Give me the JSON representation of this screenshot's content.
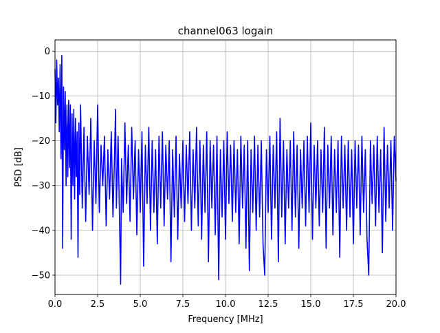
{
  "chart_data": {
    "type": "line",
    "title": "channel063 logain",
    "xlabel": "Frequency [MHz]",
    "ylabel": "PSD [dB]",
    "xlim": [
      0,
      20
    ],
    "ylim": [
      -54.3,
      2.5
    ],
    "grid": true,
    "line_color": "#0000ff",
    "x_ticks": [
      0.0,
      2.5,
      5.0,
      7.5,
      10.0,
      12.5,
      15.0,
      17.5,
      20.0
    ],
    "x_tick_labels": [
      "0.0",
      "2.5",
      "5.0",
      "7.5",
      "10.0",
      "12.5",
      "15.0",
      "17.5",
      "20.0"
    ],
    "y_ticks": [
      0,
      -10,
      -20,
      -30,
      -40,
      -50
    ],
    "y_tick_labels": [
      "0",
      "−10",
      "−20",
      "−30",
      "−40",
      "−50"
    ],
    "series": [
      {
        "points": [
          [
            0.0,
            -4
          ],
          [
            0.05,
            -16
          ],
          [
            0.1,
            -2
          ],
          [
            0.15,
            -12
          ],
          [
            0.2,
            -6
          ],
          [
            0.25,
            -18
          ],
          [
            0.3,
            -3
          ],
          [
            0.35,
            -24
          ],
          [
            0.4,
            -1
          ],
          [
            0.45,
            -44
          ],
          [
            0.5,
            -8
          ],
          [
            0.55,
            -22
          ],
          [
            0.6,
            -9
          ],
          [
            0.65,
            -30
          ],
          [
            0.7,
            -12
          ],
          [
            0.75,
            -28
          ],
          [
            0.8,
            -11
          ],
          [
            0.85,
            -26
          ],
          [
            0.9,
            -12
          ],
          [
            0.95,
            -42
          ],
          [
            1.0,
            -14
          ],
          [
            1.05,
            -30
          ],
          [
            1.1,
            -13
          ],
          [
            1.15,
            -33
          ],
          [
            1.2,
            -15
          ],
          [
            1.25,
            -28
          ],
          [
            1.3,
            -18
          ],
          [
            1.35,
            -46
          ],
          [
            1.4,
            -16
          ],
          [
            1.45,
            -32
          ],
          [
            1.5,
            -12
          ],
          [
            1.6,
            -35
          ],
          [
            1.7,
            -17
          ],
          [
            1.8,
            -38
          ],
          [
            1.9,
            -19
          ],
          [
            2.0,
            -32
          ],
          [
            2.1,
            -15
          ],
          [
            2.2,
            -40
          ],
          [
            2.3,
            -20
          ],
          [
            2.4,
            -34
          ],
          [
            2.5,
            -12
          ],
          [
            2.6,
            -36
          ],
          [
            2.7,
            -21
          ],
          [
            2.8,
            -30
          ],
          [
            2.9,
            -19
          ],
          [
            3.0,
            -39
          ],
          [
            3.1,
            -22
          ],
          [
            3.2,
            -33
          ],
          [
            3.3,
            -18
          ],
          [
            3.4,
            -37
          ],
          [
            3.5,
            -22
          ],
          [
            3.55,
            -13
          ],
          [
            3.6,
            -35
          ],
          [
            3.7,
            -19
          ],
          [
            3.8,
            -41
          ],
          [
            3.85,
            -52
          ],
          [
            3.9,
            -24
          ],
          [
            4.0,
            -36
          ],
          [
            4.1,
            -16
          ],
          [
            4.2,
            -34
          ],
          [
            4.3,
            -21
          ],
          [
            4.4,
            -38
          ],
          [
            4.5,
            -17
          ],
          [
            4.6,
            -33
          ],
          [
            4.7,
            -20
          ],
          [
            4.8,
            -41
          ],
          [
            4.9,
            -22
          ],
          [
            5.0,
            -36
          ],
          [
            5.1,
            -18
          ],
          [
            5.2,
            -48
          ],
          [
            5.3,
            -21
          ],
          [
            5.4,
            -34
          ],
          [
            5.5,
            -17
          ],
          [
            5.6,
            -40
          ],
          [
            5.7,
            -20
          ],
          [
            5.8,
            -36
          ],
          [
            5.9,
            -22
          ],
          [
            6.0,
            -43
          ],
          [
            6.1,
            -19
          ],
          [
            6.2,
            -35
          ],
          [
            6.3,
            -18
          ],
          [
            6.4,
            -39
          ],
          [
            6.5,
            -21
          ],
          [
            6.6,
            -33
          ],
          [
            6.7,
            -20
          ],
          [
            6.8,
            -47
          ],
          [
            6.9,
            -22
          ],
          [
            7.0,
            -37
          ],
          [
            7.1,
            -19
          ],
          [
            7.2,
            -42
          ],
          [
            7.3,
            -23
          ],
          [
            7.4,
            -35
          ],
          [
            7.5,
            -20
          ],
          [
            7.6,
            -38
          ],
          [
            7.7,
            -21
          ],
          [
            7.8,
            -34
          ],
          [
            7.9,
            -18
          ],
          [
            8.0,
            -40
          ],
          [
            8.1,
            -22
          ],
          [
            8.2,
            -35
          ],
          [
            8.3,
            -17
          ],
          [
            8.4,
            -39
          ],
          [
            8.5,
            -20
          ],
          [
            8.6,
            -42
          ],
          [
            8.7,
            -21
          ],
          [
            8.8,
            -36
          ],
          [
            8.9,
            -18
          ],
          [
            9.0,
            -47
          ],
          [
            9.1,
            -20
          ],
          [
            9.2,
            -35
          ],
          [
            9.3,
            -21
          ],
          [
            9.4,
            -41
          ],
          [
            9.5,
            -19
          ],
          [
            9.6,
            -51
          ],
          [
            9.7,
            -22
          ],
          [
            9.8,
            -37
          ],
          [
            9.9,
            -20
          ],
          [
            10.0,
            -42
          ],
          [
            10.1,
            -18
          ],
          [
            10.2,
            -34
          ],
          [
            10.3,
            -21
          ],
          [
            10.4,
            -38
          ],
          [
            10.5,
            -20
          ],
          [
            10.6,
            -36
          ],
          [
            10.7,
            -22
          ],
          [
            10.8,
            -43
          ],
          [
            10.9,
            -19
          ],
          [
            11.0,
            -35
          ],
          [
            11.1,
            -21
          ],
          [
            11.2,
            -44
          ],
          [
            11.3,
            -20
          ],
          [
            11.4,
            -49
          ],
          [
            11.5,
            -22
          ],
          [
            11.6,
            -36
          ],
          [
            11.7,
            -19
          ],
          [
            11.8,
            -40
          ],
          [
            11.9,
            -21
          ],
          [
            12.0,
            -37
          ],
          [
            12.1,
            -20
          ],
          [
            12.2,
            -43
          ],
          [
            12.3,
            -50
          ],
          [
            12.4,
            -22
          ],
          [
            12.5,
            -36
          ],
          [
            12.6,
            -19
          ],
          [
            12.7,
            -42
          ],
          [
            12.8,
            -21
          ],
          [
            12.9,
            -35
          ],
          [
            13.0,
            -18
          ],
          [
            13.1,
            -47
          ],
          [
            13.2,
            -15
          ],
          [
            13.3,
            -37
          ],
          [
            13.4,
            -20
          ],
          [
            13.5,
            -43
          ],
          [
            13.6,
            -22
          ],
          [
            13.7,
            -35
          ],
          [
            13.8,
            -20
          ],
          [
            13.9,
            -40
          ],
          [
            14.0,
            -18
          ],
          [
            14.1,
            -37
          ],
          [
            14.2,
            -21
          ],
          [
            14.3,
            -44
          ],
          [
            14.4,
            -22
          ],
          [
            14.5,
            -35
          ],
          [
            14.6,
            -20
          ],
          [
            14.7,
            -39
          ],
          [
            14.8,
            -19
          ],
          [
            14.9,
            -36
          ],
          [
            15.0,
            -16
          ],
          [
            15.1,
            -42
          ],
          [
            15.2,
            -21
          ],
          [
            15.3,
            -35
          ],
          [
            15.4,
            -20
          ],
          [
            15.5,
            -39
          ],
          [
            15.6,
            -22
          ],
          [
            15.7,
            -36
          ],
          [
            15.8,
            -17
          ],
          [
            15.9,
            -44
          ],
          [
            16.0,
            -21
          ],
          [
            16.1,
            -35
          ],
          [
            16.2,
            -19
          ],
          [
            16.3,
            -41
          ],
          [
            16.4,
            -22
          ],
          [
            16.5,
            -36
          ],
          [
            16.6,
            -20
          ],
          [
            16.7,
            -46
          ],
          [
            16.8,
            -19
          ],
          [
            16.9,
            -35
          ],
          [
            17.0,
            -21
          ],
          [
            17.1,
            -40
          ],
          [
            17.2,
            -20
          ],
          [
            17.3,
            -37
          ],
          [
            17.4,
            -22
          ],
          [
            17.5,
            -43
          ],
          [
            17.6,
            -20
          ],
          [
            17.7,
            -35
          ],
          [
            17.8,
            -21
          ],
          [
            17.9,
            -41
          ],
          [
            18.0,
            -19
          ],
          [
            18.1,
            -36
          ],
          [
            18.2,
            -22
          ],
          [
            18.3,
            -42
          ],
          [
            18.4,
            -50
          ],
          [
            18.5,
            -20
          ],
          [
            18.6,
            -34
          ],
          [
            18.7,
            -21
          ],
          [
            18.8,
            -39
          ],
          [
            18.9,
            -19
          ],
          [
            19.0,
            -36
          ],
          [
            19.1,
            -22
          ],
          [
            19.2,
            -45
          ],
          [
            19.3,
            -17
          ],
          [
            19.4,
            -38
          ],
          [
            19.5,
            -21
          ],
          [
            19.6,
            -35
          ],
          [
            19.7,
            -20
          ],
          [
            19.8,
            -40
          ],
          [
            19.9,
            -19
          ],
          [
            20.0,
            -29
          ]
        ]
      }
    ]
  }
}
